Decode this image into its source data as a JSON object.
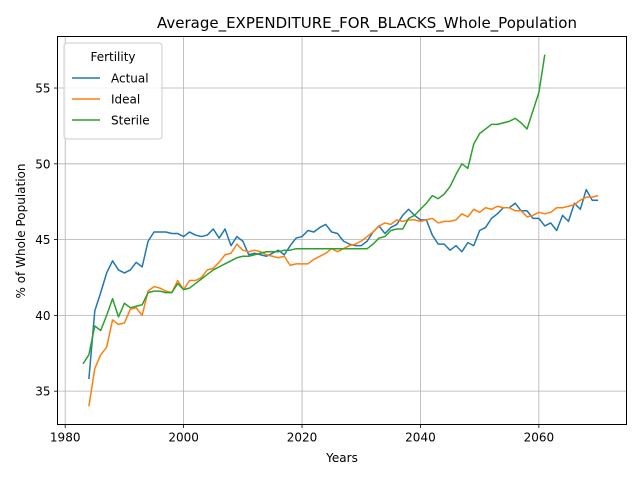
{
  "chart_data": {
    "type": "line",
    "title": "Average_EXPENDITURE_FOR_BLACKS_Whole_Population",
    "xlabel": "Years",
    "ylabel": "% of Whole Population",
    "xlim": [
      1978.7,
      2074.8
    ],
    "ylim": [
      32.8,
      58.4
    ],
    "xticks": [
      1980,
      2000,
      2020,
      2040,
      2060
    ],
    "yticks": [
      35,
      40,
      45,
      50,
      55
    ],
    "grid": true,
    "legend": {
      "title": "Fertility",
      "position": "top-left"
    },
    "series": [
      {
        "name": "Actual",
        "color": "#1f77b4",
        "x": [
          1984,
          1985,
          1986,
          1987,
          1988,
          1989,
          1990,
          1991,
          1992,
          1993,
          1994,
          1995,
          1996,
          1997,
          1998,
          1999,
          2000,
          2001,
          2002,
          2003,
          2004,
          2005,
          2006,
          2007,
          2008,
          2009,
          2010,
          2011,
          2012,
          2013,
          2014,
          2015,
          2016,
          2017,
          2018,
          2019,
          2020,
          2021,
          2022,
          2023,
          2024,
          2025,
          2026,
          2027,
          2028,
          2029,
          2030,
          2031,
          2032,
          2033,
          2034,
          2035,
          2036,
          2037,
          2038,
          2039,
          2040,
          2041,
          2042,
          2043,
          2044,
          2045,
          2046,
          2047,
          2048,
          2049,
          2050,
          2051,
          2052,
          2053,
          2054,
          2055,
          2056,
          2057,
          2058,
          2059,
          2060,
          2061,
          2062,
          2063,
          2064,
          2065,
          2066,
          2067,
          2068,
          2069,
          2070
        ],
        "y": [
          35.8,
          40.3,
          41.5,
          42.8,
          43.6,
          43.0,
          42.8,
          43.0,
          43.5,
          43.2,
          44.9,
          45.5,
          45.5,
          45.5,
          45.4,
          45.4,
          45.2,
          45.5,
          45.3,
          45.2,
          45.3,
          45.7,
          45.1,
          45.7,
          44.6,
          45.2,
          44.9,
          44.0,
          44.1,
          44.0,
          43.9,
          44.1,
          44.3,
          44.0,
          44.6,
          45.1,
          45.2,
          45.6,
          45.5,
          45.8,
          46.0,
          45.5,
          45.4,
          44.9,
          44.7,
          44.6,
          44.6,
          44.9,
          45.5,
          45.9,
          45.4,
          45.8,
          46.0,
          46.6,
          47.0,
          46.6,
          46.3,
          46.3,
          45.3,
          44.7,
          44.7,
          44.3,
          44.6,
          44.2,
          44.8,
          44.6,
          45.6,
          45.8,
          46.4,
          46.7,
          47.1,
          47.1,
          47.4,
          46.9,
          46.9,
          46.4,
          46.4,
          45.9,
          46.1,
          45.6,
          46.6,
          46.2,
          47.4,
          47.0,
          48.3,
          47.6,
          47.6
        ]
      },
      {
        "name": "Ideal",
        "color": "#ff7f0e",
        "x": [
          1984,
          1985,
          1986,
          1987,
          1988,
          1989,
          1990,
          1991,
          1992,
          1993,
          1994,
          1995,
          1996,
          1997,
          1998,
          1999,
          2000,
          2001,
          2002,
          2003,
          2004,
          2005,
          2006,
          2007,
          2008,
          2009,
          2010,
          2011,
          2012,
          2013,
          2014,
          2015,
          2016,
          2017,
          2018,
          2019,
          2020,
          2021,
          2022,
          2023,
          2024,
          2025,
          2026,
          2027,
          2028,
          2029,
          2030,
          2031,
          2032,
          2033,
          2034,
          2035,
          2036,
          2037,
          2038,
          2039,
          2040,
          2041,
          2042,
          2043,
          2044,
          2045,
          2046,
          2047,
          2048,
          2049,
          2050,
          2051,
          2052,
          2053,
          2054,
          2055,
          2056,
          2057,
          2058,
          2059,
          2060,
          2061,
          2062,
          2063,
          2064,
          2065,
          2066,
          2067,
          2068,
          2069,
          2070
        ],
        "y": [
          34.0,
          36.5,
          37.4,
          37.9,
          39.7,
          39.4,
          39.5,
          40.4,
          40.5,
          40.0,
          41.6,
          41.9,
          41.8,
          41.6,
          41.5,
          42.3,
          41.7,
          42.3,
          42.3,
          42.5,
          43.0,
          43.1,
          43.5,
          44.0,
          44.1,
          44.7,
          44.3,
          44.2,
          44.3,
          44.2,
          44.0,
          43.9,
          43.8,
          43.9,
          43.3,
          43.4,
          43.4,
          43.4,
          43.7,
          43.9,
          44.1,
          44.4,
          44.2,
          44.4,
          44.6,
          44.7,
          44.9,
          45.2,
          45.5,
          45.9,
          46.1,
          46.0,
          46.3,
          46.2,
          46.3,
          46.3,
          46.2,
          46.3,
          46.4,
          46.1,
          46.2,
          46.2,
          46.3,
          46.7,
          46.5,
          47.0,
          46.8,
          47.1,
          47.0,
          47.2,
          47.1,
          47.1,
          46.9,
          46.9,
          46.5,
          46.6,
          46.8,
          46.7,
          46.8,
          47.1,
          47.1,
          47.2,
          47.3,
          47.6,
          47.8,
          47.8,
          47.9
        ]
      },
      {
        "name": "Sterile",
        "color": "#2ca02c",
        "x": [
          1983,
          1984,
          1985,
          1986,
          1987,
          1988,
          1989,
          1990,
          1991,
          1992,
          1993,
          1994,
          1995,
          1996,
          1997,
          1998,
          1999,
          2000,
          2001,
          2002,
          2003,
          2004,
          2005,
          2006,
          2007,
          2008,
          2009,
          2010,
          2011,
          2012,
          2013,
          2014,
          2015,
          2016,
          2017,
          2018,
          2019,
          2020,
          2021,
          2022,
          2023,
          2024,
          2025,
          2026,
          2027,
          2028,
          2029,
          2030,
          2031,
          2032,
          2033,
          2034,
          2035,
          2036,
          2037,
          2038,
          2039,
          2040,
          2041,
          2042,
          2043,
          2044,
          2045,
          2046,
          2047,
          2048,
          2049,
          2050,
          2051,
          2052,
          2053,
          2054,
          2055,
          2056,
          2057,
          2058,
          2059,
          2060,
          2061
        ],
        "y": [
          36.8,
          37.4,
          39.3,
          39.0,
          40.0,
          41.1,
          39.9,
          40.8,
          40.5,
          40.6,
          40.7,
          41.5,
          41.6,
          41.6,
          41.5,
          41.5,
          42.1,
          41.7,
          41.8,
          42.1,
          42.4,
          42.7,
          43.0,
          43.2,
          43.4,
          43.6,
          43.8,
          43.9,
          43.9,
          44.0,
          44.1,
          44.2,
          44.2,
          44.2,
          44.3,
          44.3,
          44.4,
          44.4,
          44.4,
          44.4,
          44.4,
          44.4,
          44.4,
          44.4,
          44.4,
          44.4,
          44.4,
          44.4,
          44.4,
          44.7,
          45.1,
          45.2,
          45.6,
          45.7,
          45.7,
          46.4,
          46.6,
          47.0,
          47.4,
          47.9,
          47.7,
          48.0,
          48.5,
          49.3,
          50.0,
          49.7,
          51.3,
          52.0,
          52.3,
          52.6,
          52.6,
          52.7,
          52.8,
          53.0,
          52.7,
          52.3,
          53.5,
          54.7,
          57.2
        ]
      }
    ]
  }
}
